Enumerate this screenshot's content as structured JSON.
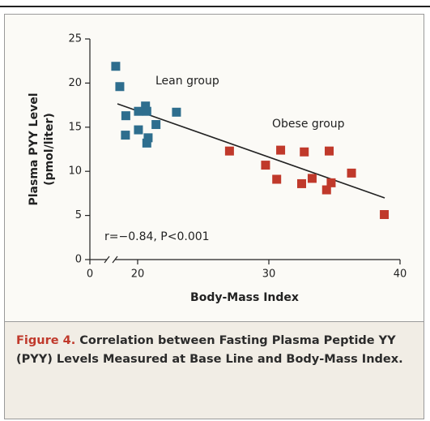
{
  "chart_data": {
    "type": "scatter",
    "ylabel": [
      "Plasma PYY Level",
      "(pmol/liter)"
    ],
    "xlabel": "Body-Mass Index",
    "xlim": [
      0,
      40
    ],
    "x_axis_break": [
      0,
      16.36
    ],
    "xticks": [
      0,
      20,
      30,
      40
    ],
    "ylim": [
      0,
      25
    ],
    "yticks": [
      0,
      5,
      10,
      15,
      20,
      25
    ],
    "series": [
      {
        "name": "Lean group",
        "color": "#2e6e8e",
        "x": [
          18.33,
          18.64,
          19.1,
          19.07,
          20.06,
          20.06,
          20.6,
          20.7,
          20.8,
          20.7,
          21.4,
          22.96
        ],
        "values": [
          21.9,
          19.6,
          16.3,
          14.1,
          16.8,
          14.7,
          17.4,
          16.8,
          13.8,
          13.2,
          15.3,
          16.7
        ]
      },
      {
        "name": "Obese group",
        "color": "#c0392b",
        "x": [
          27.0,
          29.75,
          30.6,
          30.9,
          32.7,
          32.5,
          33.3,
          34.6,
          34.4,
          34.75,
          36.3,
          38.8
        ],
        "values": [
          12.3,
          10.7,
          9.1,
          12.4,
          12.2,
          8.6,
          9.2,
          12.3,
          7.9,
          8.7,
          9.8,
          5.1
        ]
      }
    ],
    "trend_line": {
      "x": [
        18.46,
        38.83
      ],
      "values": [
        17.65,
        6.99
      ],
      "color": "#222222"
    },
    "annotation": "r=−0.84, P<0.001",
    "caption": {
      "label": "Figure 4.",
      "text": "Correlation between Fasting Plasma Peptide YY (PYY) Levels Measured at Base Line and Body-Mass Index."
    }
  }
}
